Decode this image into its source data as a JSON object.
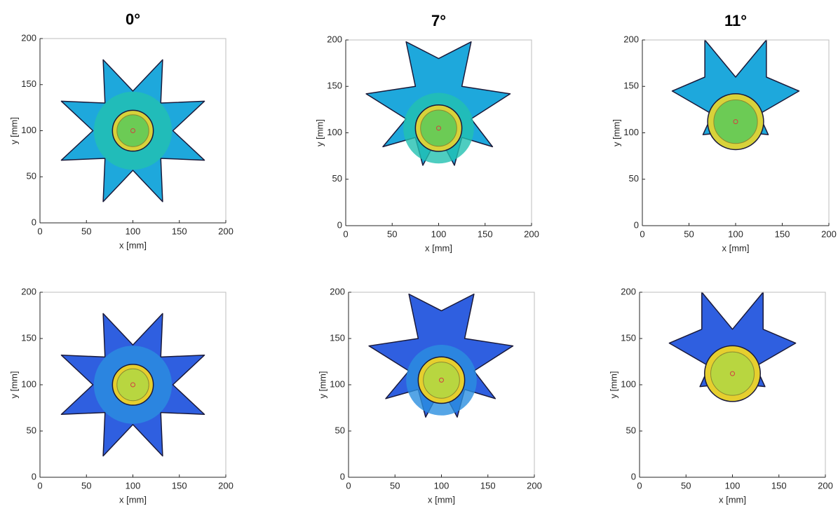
{
  "chart_data": [
    {
      "type": "contour",
      "title": "0°",
      "xlabel": "x [mm]",
      "ylabel": "y [mm]",
      "xlim": [
        0,
        200
      ],
      "ylim": [
        0,
        200
      ],
      "xticks": [
        0,
        50,
        100,
        150,
        200
      ],
      "yticks": [
        0,
        50,
        100,
        150,
        200
      ]
    },
    {
      "type": "contour",
      "title": "7°",
      "xlabel": "x [mm]",
      "ylabel": "y [mm]",
      "xlim": [
        0,
        200
      ],
      "ylim": [
        0,
        200
      ],
      "xticks": [
        0,
        50,
        100,
        150,
        200
      ],
      "yticks": [
        0,
        50,
        100,
        150,
        200
      ]
    },
    {
      "type": "contour",
      "title": "11°",
      "xlabel": "x [mm]",
      "ylabel": "y [mm]",
      "xlim": [
        0,
        200
      ],
      "ylim": [
        0,
        200
      ],
      "xticks": [
        0,
        50,
        100,
        150,
        200
      ],
      "yticks": [
        0,
        50,
        100,
        150,
        200
      ]
    },
    {
      "type": "contour",
      "xlabel": "x [mm]",
      "ylabel": "y [mm]",
      "xlim": [
        0,
        200
      ],
      "ylim": [
        0,
        200
      ],
      "xticks": [
        0,
        50,
        100,
        150,
        200
      ],
      "yticks": [
        0,
        50,
        100,
        150,
        200
      ]
    },
    {
      "type": "contour",
      "xlabel": "x [mm]",
      "ylabel": "y [mm]",
      "xlim": [
        0,
        200
      ],
      "ylim": [
        0,
        200
      ],
      "xticks": [
        0,
        50,
        100,
        150,
        200
      ],
      "yticks": [
        0,
        50,
        100,
        150,
        200
      ]
    },
    {
      "type": "contour",
      "xlabel": "x [mm]",
      "ylabel": "y [mm]",
      "xlim": [
        0,
        200
      ],
      "ylim": [
        0,
        200
      ],
      "xticks": [
        0,
        50,
        100,
        150,
        200
      ],
      "yticks": [
        0,
        50,
        100,
        150,
        200
      ]
    }
  ]
}
